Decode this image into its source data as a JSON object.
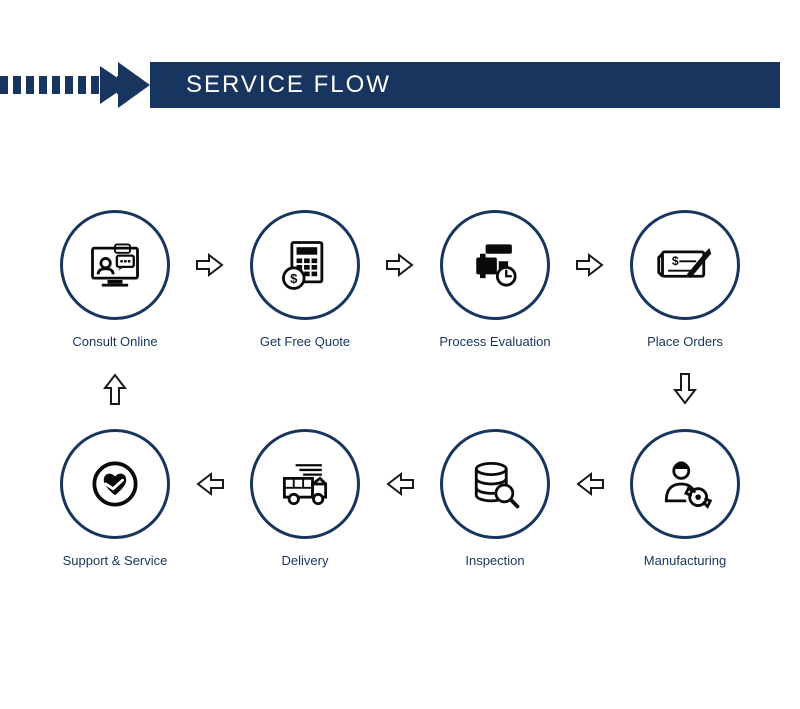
{
  "colors": {
    "primary": "#17355e",
    "banner_bg": "#17355e",
    "circle_border": "#17355e",
    "label": "#17355e",
    "icon_fill": "#0a0a0a",
    "arrow_stroke": "#1a1a1a",
    "background": "#ffffff"
  },
  "header": {
    "title": "SERVICE FLOW",
    "title_color": "#ffffff",
    "title_fontsize": 24
  },
  "layout": {
    "circle_diameter": 110,
    "circle_border_width": 3,
    "label_fontsize": 13
  },
  "steps": [
    {
      "id": "consult-online",
      "label": "Consult Online",
      "icon": "consult"
    },
    {
      "id": "get-free-quote",
      "label": "Get Free Quote",
      "icon": "quote"
    },
    {
      "id": "process-evaluation",
      "label": "Process Evaluation",
      "icon": "process"
    },
    {
      "id": "place-orders",
      "label": "Place Orders",
      "icon": "order"
    },
    {
      "id": "manufacturing",
      "label": "Manufacturing",
      "icon": "manufacturing"
    },
    {
      "id": "inspection",
      "label": "Inspection",
      "icon": "inspection"
    },
    {
      "id": "delivery",
      "label": "Delivery",
      "icon": "delivery"
    },
    {
      "id": "support-service",
      "label": "Support & Service",
      "icon": "support"
    }
  ],
  "flow_order_note": "Top row L→R steps 0-3, then down to step 4, bottom row R→L steps 4-7, then up to step 0 (cycle)"
}
